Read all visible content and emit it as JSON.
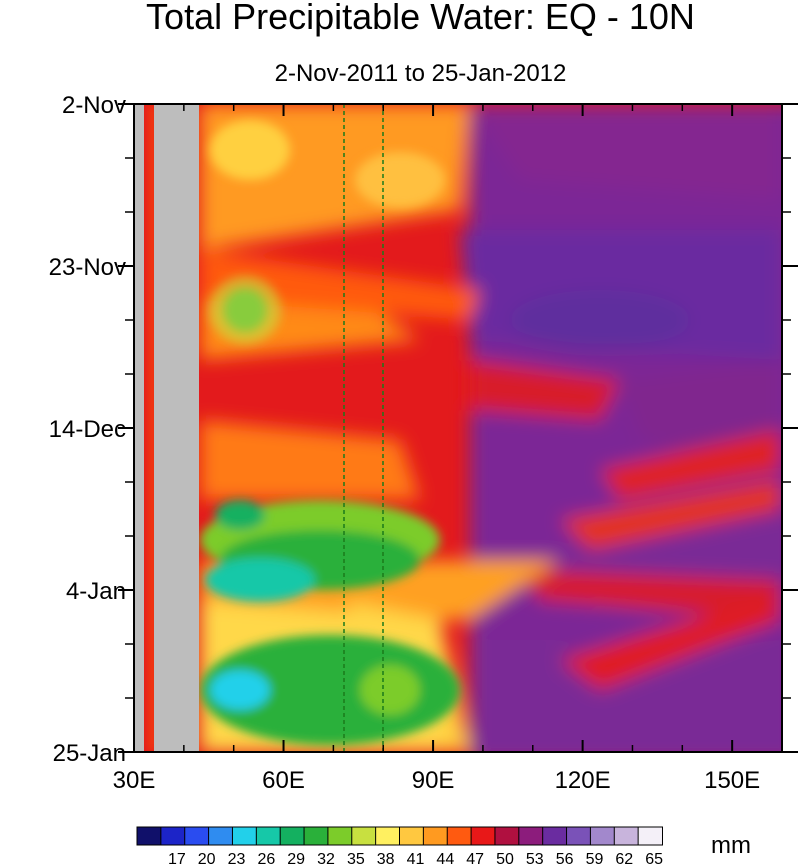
{
  "chart_data": {
    "type": "heatmap",
    "title": "Total Precipitable Water: EQ - 10N",
    "subtitle": "2-Nov-2011 to 25-Jan-2012",
    "x_axis": {
      "range": [
        30,
        160
      ],
      "tick_values": [
        30,
        60,
        90,
        120,
        150
      ],
      "tick_labels": [
        "30E",
        "60E",
        "90E",
        "120E",
        "150E"
      ]
    },
    "y_axis": {
      "range": [
        "2011-11-02",
        "2012-01-25"
      ],
      "tick_values": [
        "2011-11-02",
        "2011-11-23",
        "2011-12-14",
        "2012-01-04",
        "2012-01-25"
      ],
      "tick_labels": [
        "2-Nov",
        "23-Nov",
        "14-Dec",
        "4-Jan",
        "25-Jan"
      ]
    },
    "colorbar": {
      "levels": [
        17,
        20,
        23,
        26,
        29,
        32,
        35,
        38,
        41,
        44,
        47,
        50,
        53,
        56,
        59,
        62,
        65
      ],
      "labels": [
        "17",
        "20",
        "23",
        "26",
        "29",
        "32",
        "35",
        "38",
        "41",
        "44",
        "47",
        "50",
        "53",
        "56",
        "59",
        "62",
        "65"
      ],
      "unit": "mm",
      "colors": [
        "#10106a",
        "#1c24c8",
        "#2a4cf0",
        "#2f8cf0",
        "#22d0ea",
        "#16c8a8",
        "#14b060",
        "#2ab03a",
        "#7ccc2a",
        "#c8e040",
        "#fff060",
        "#ffc840",
        "#ff9a20",
        "#ff5a10",
        "#e81818",
        "#b01040",
        "#8c1c7c",
        "#6a2ca0",
        "#7a52b8",
        "#a288cc",
        "#c8b4dc",
        "#f4f0f8"
      ]
    },
    "missing_color": "#bdbdbd",
    "missing_region_lon": [
      34,
      43
    ],
    "reference_lines_lon": [
      72,
      80
    ]
  }
}
